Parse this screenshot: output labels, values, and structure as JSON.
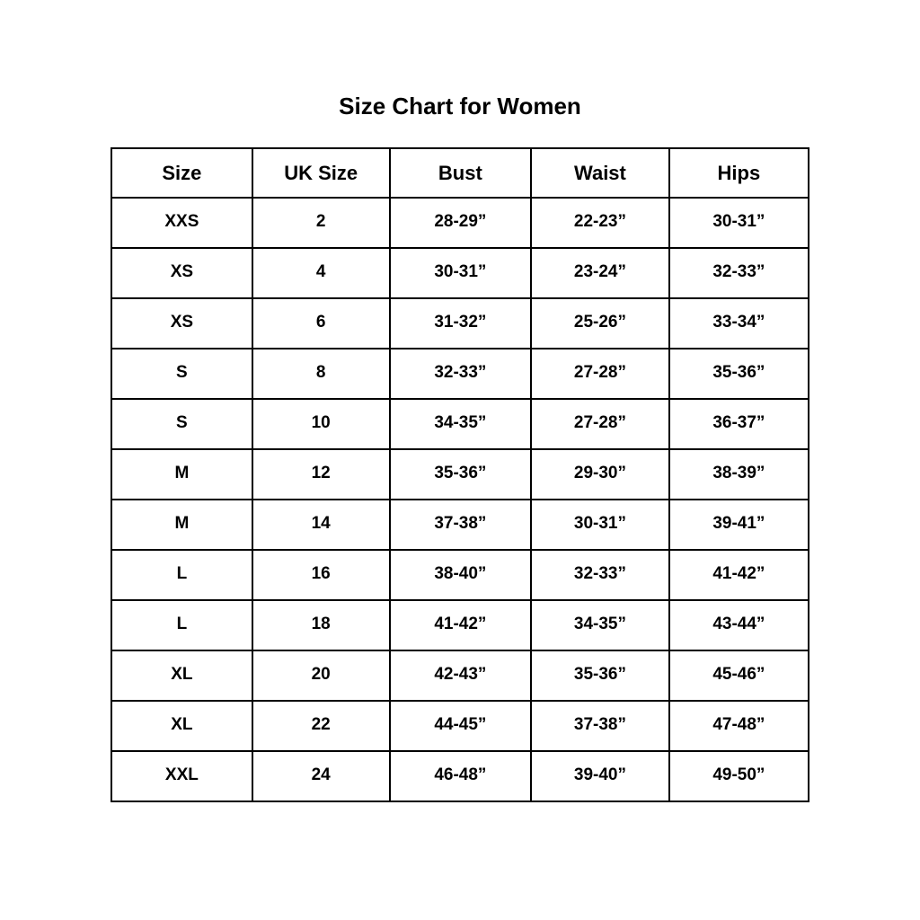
{
  "page_title": "Size Chart for Women",
  "chart_data": {
    "type": "table",
    "title": "Size Chart for Women",
    "columns": [
      "Size",
      "UK Size",
      "Bust",
      "Waist",
      "Hips"
    ],
    "rows": [
      [
        "XXS",
        "2",
        "28-29”",
        "22-23”",
        "30-31”"
      ],
      [
        "XS",
        "4",
        "30-31”",
        "23-24”",
        "32-33”"
      ],
      [
        "XS",
        "6",
        "31-32”",
        "25-26”",
        "33-34”"
      ],
      [
        "S",
        "8",
        "32-33”",
        "27-28”",
        "35-36”"
      ],
      [
        "S",
        "10",
        "34-35”",
        "27-28”",
        "36-37”"
      ],
      [
        "M",
        "12",
        "35-36”",
        "29-30”",
        "38-39”"
      ],
      [
        "M",
        "14",
        "37-38”",
        "30-31”",
        "39-41”"
      ],
      [
        "L",
        "16",
        "38-40”",
        "32-33”",
        "41-42”"
      ],
      [
        "L",
        "18",
        "41-42”",
        "34-35”",
        "43-44”"
      ],
      [
        "XL",
        "20",
        "42-43”",
        "35-36”",
        "45-46”"
      ],
      [
        "XL",
        "22",
        "44-45”",
        "37-38”",
        "47-48”"
      ],
      [
        "XXL",
        "24",
        "46-48”",
        "39-40”",
        "49-50”"
      ]
    ],
    "text_color": "#000000",
    "border_color": "#000000",
    "background_color": "#ffffff"
  }
}
